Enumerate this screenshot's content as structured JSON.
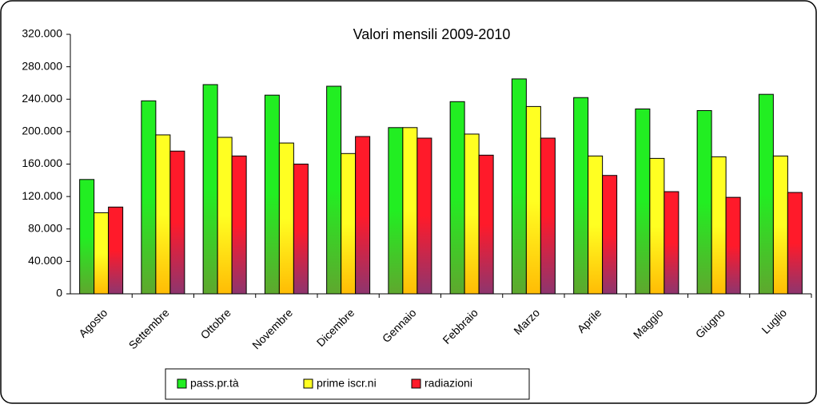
{
  "chart_data": {
    "type": "bar",
    "title": "Valori mensili 2009-2010",
    "categories": [
      "Agosto",
      "Settembre",
      "Ottobre",
      "Novembre",
      "Dicembre",
      "Gennaio",
      "Febbraio",
      "Marzo",
      "Aprile",
      "Maggio",
      "Giugno",
      "Luglio"
    ],
    "series": [
      {
        "name": "pass.pr.tà",
        "color": "#22ee22",
        "values": [
          141000,
          238000,
          258000,
          245000,
          256000,
          205000,
          237000,
          265000,
          242000,
          228000,
          226000,
          246000
        ]
      },
      {
        "name": "prime iscr.ni",
        "color": "#ffff22",
        "values": [
          100000,
          196000,
          193000,
          186000,
          173000,
          205000,
          197000,
          231000,
          170000,
          167000,
          169000,
          170000
        ]
      },
      {
        "name": "radiazioni",
        "color": "#ff1a2a",
        "values": [
          107000,
          176000,
          170000,
          160000,
          194000,
          192000,
          171000,
          192000,
          146000,
          126000,
          119000,
          125000
        ]
      }
    ],
    "ylim": [
      0,
      320000
    ],
    "yticks": [
      0,
      {
        "value": 40000,
        "label": "40.000"
      },
      {
        "value": 80000,
        "label": "80.000"
      },
      {
        "value": 120000,
        "label": "120.000"
      },
      {
        "value": 160000,
        "label": "160.000"
      },
      {
        "value": 200000,
        "label": "200.000"
      },
      {
        "value": 240000,
        "label": "240.000"
      },
      {
        "value": 280000,
        "label": "280.000"
      },
      {
        "value": 320000,
        "label": "320.000"
      }
    ],
    "grid": false
  }
}
